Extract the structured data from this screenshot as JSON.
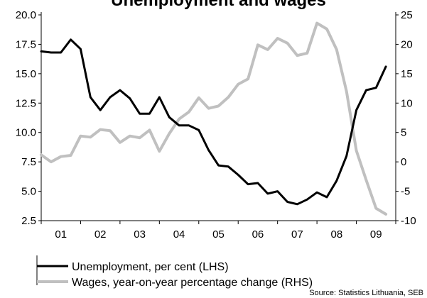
{
  "chart_data": {
    "type": "line",
    "title": "Unemployment and wages",
    "x_labels": [
      "01",
      "02",
      "03",
      "04",
      "05",
      "06",
      "07",
      "08",
      "09"
    ],
    "x_range": [
      2001,
      2010
    ],
    "left_axis": {
      "range": [
        2.5,
        20.0
      ],
      "ticks": [
        "2.5",
        "5.0",
        "7.5",
        "10.0",
        "12.5",
        "15.0",
        "17.5",
        "20.0"
      ]
    },
    "right_axis": {
      "range": [
        -10,
        25
      ],
      "ticks": [
        "-10",
        "-5",
        "0",
        "5",
        "10",
        "15",
        "20",
        "25"
      ]
    },
    "series": [
      {
        "name": "Unemployment, per cent (LHS)",
        "axis": "left",
        "color": "#000000",
        "x": [
          2001.0,
          2001.25,
          2001.5,
          2001.75,
          2002.0,
          2002.25,
          2002.5,
          2002.75,
          2003.0,
          2003.25,
          2003.5,
          2003.75,
          2004.0,
          2004.25,
          2004.5,
          2004.75,
          2005.0,
          2005.25,
          2005.5,
          2005.75,
          2006.0,
          2006.25,
          2006.5,
          2006.75,
          2007.0,
          2007.25,
          2007.5,
          2007.75,
          2008.0,
          2008.25,
          2008.5,
          2008.75,
          2009.0,
          2009.25,
          2009.5,
          2009.75
        ],
        "values": [
          16.9,
          16.8,
          16.8,
          17.9,
          17.1,
          13.0,
          11.9,
          13.0,
          13.6,
          12.9,
          11.6,
          11.6,
          13.0,
          11.3,
          10.6,
          10.6,
          10.2,
          8.5,
          7.2,
          7.1,
          6.4,
          5.6,
          5.7,
          4.8,
          5.0,
          4.1,
          3.9,
          4.3,
          4.9,
          4.5,
          5.9,
          8.0,
          11.9,
          13.6,
          13.8,
          15.6
        ]
      },
      {
        "name": "Wages, year-on-year percentage change (RHS)",
        "axis": "right",
        "color": "#c0c0c0",
        "x": [
          2001.0,
          2001.25,
          2001.5,
          2001.75,
          2002.0,
          2002.25,
          2002.5,
          2002.75,
          2003.0,
          2003.25,
          2003.5,
          2003.75,
          2004.0,
          2004.25,
          2004.5,
          2004.75,
          2005.0,
          2005.25,
          2005.5,
          2005.75,
          2006.0,
          2006.25,
          2006.5,
          2006.75,
          2007.0,
          2007.25,
          2007.5,
          2007.75,
          2008.0,
          2008.25,
          2008.5,
          2008.75,
          2009.0,
          2009.25,
          2009.5,
          2009.75
        ],
        "values": [
          1.2,
          0.0,
          0.9,
          1.1,
          4.4,
          4.2,
          5.5,
          5.3,
          3.3,
          4.4,
          4.1,
          5.4,
          1.8,
          4.8,
          7.3,
          8.5,
          10.9,
          9.1,
          9.5,
          11.0,
          13.2,
          14.1,
          19.9,
          19.1,
          21.0,
          20.2,
          18.1,
          18.5,
          23.6,
          22.6,
          19.1,
          12.0,
          1.9,
          -3.1,
          -7.9,
          -8.9
        ]
      }
    ],
    "legend_position": "bottom-left",
    "grid": false,
    "source": "Source: Statistics Lithuania, SEB"
  }
}
